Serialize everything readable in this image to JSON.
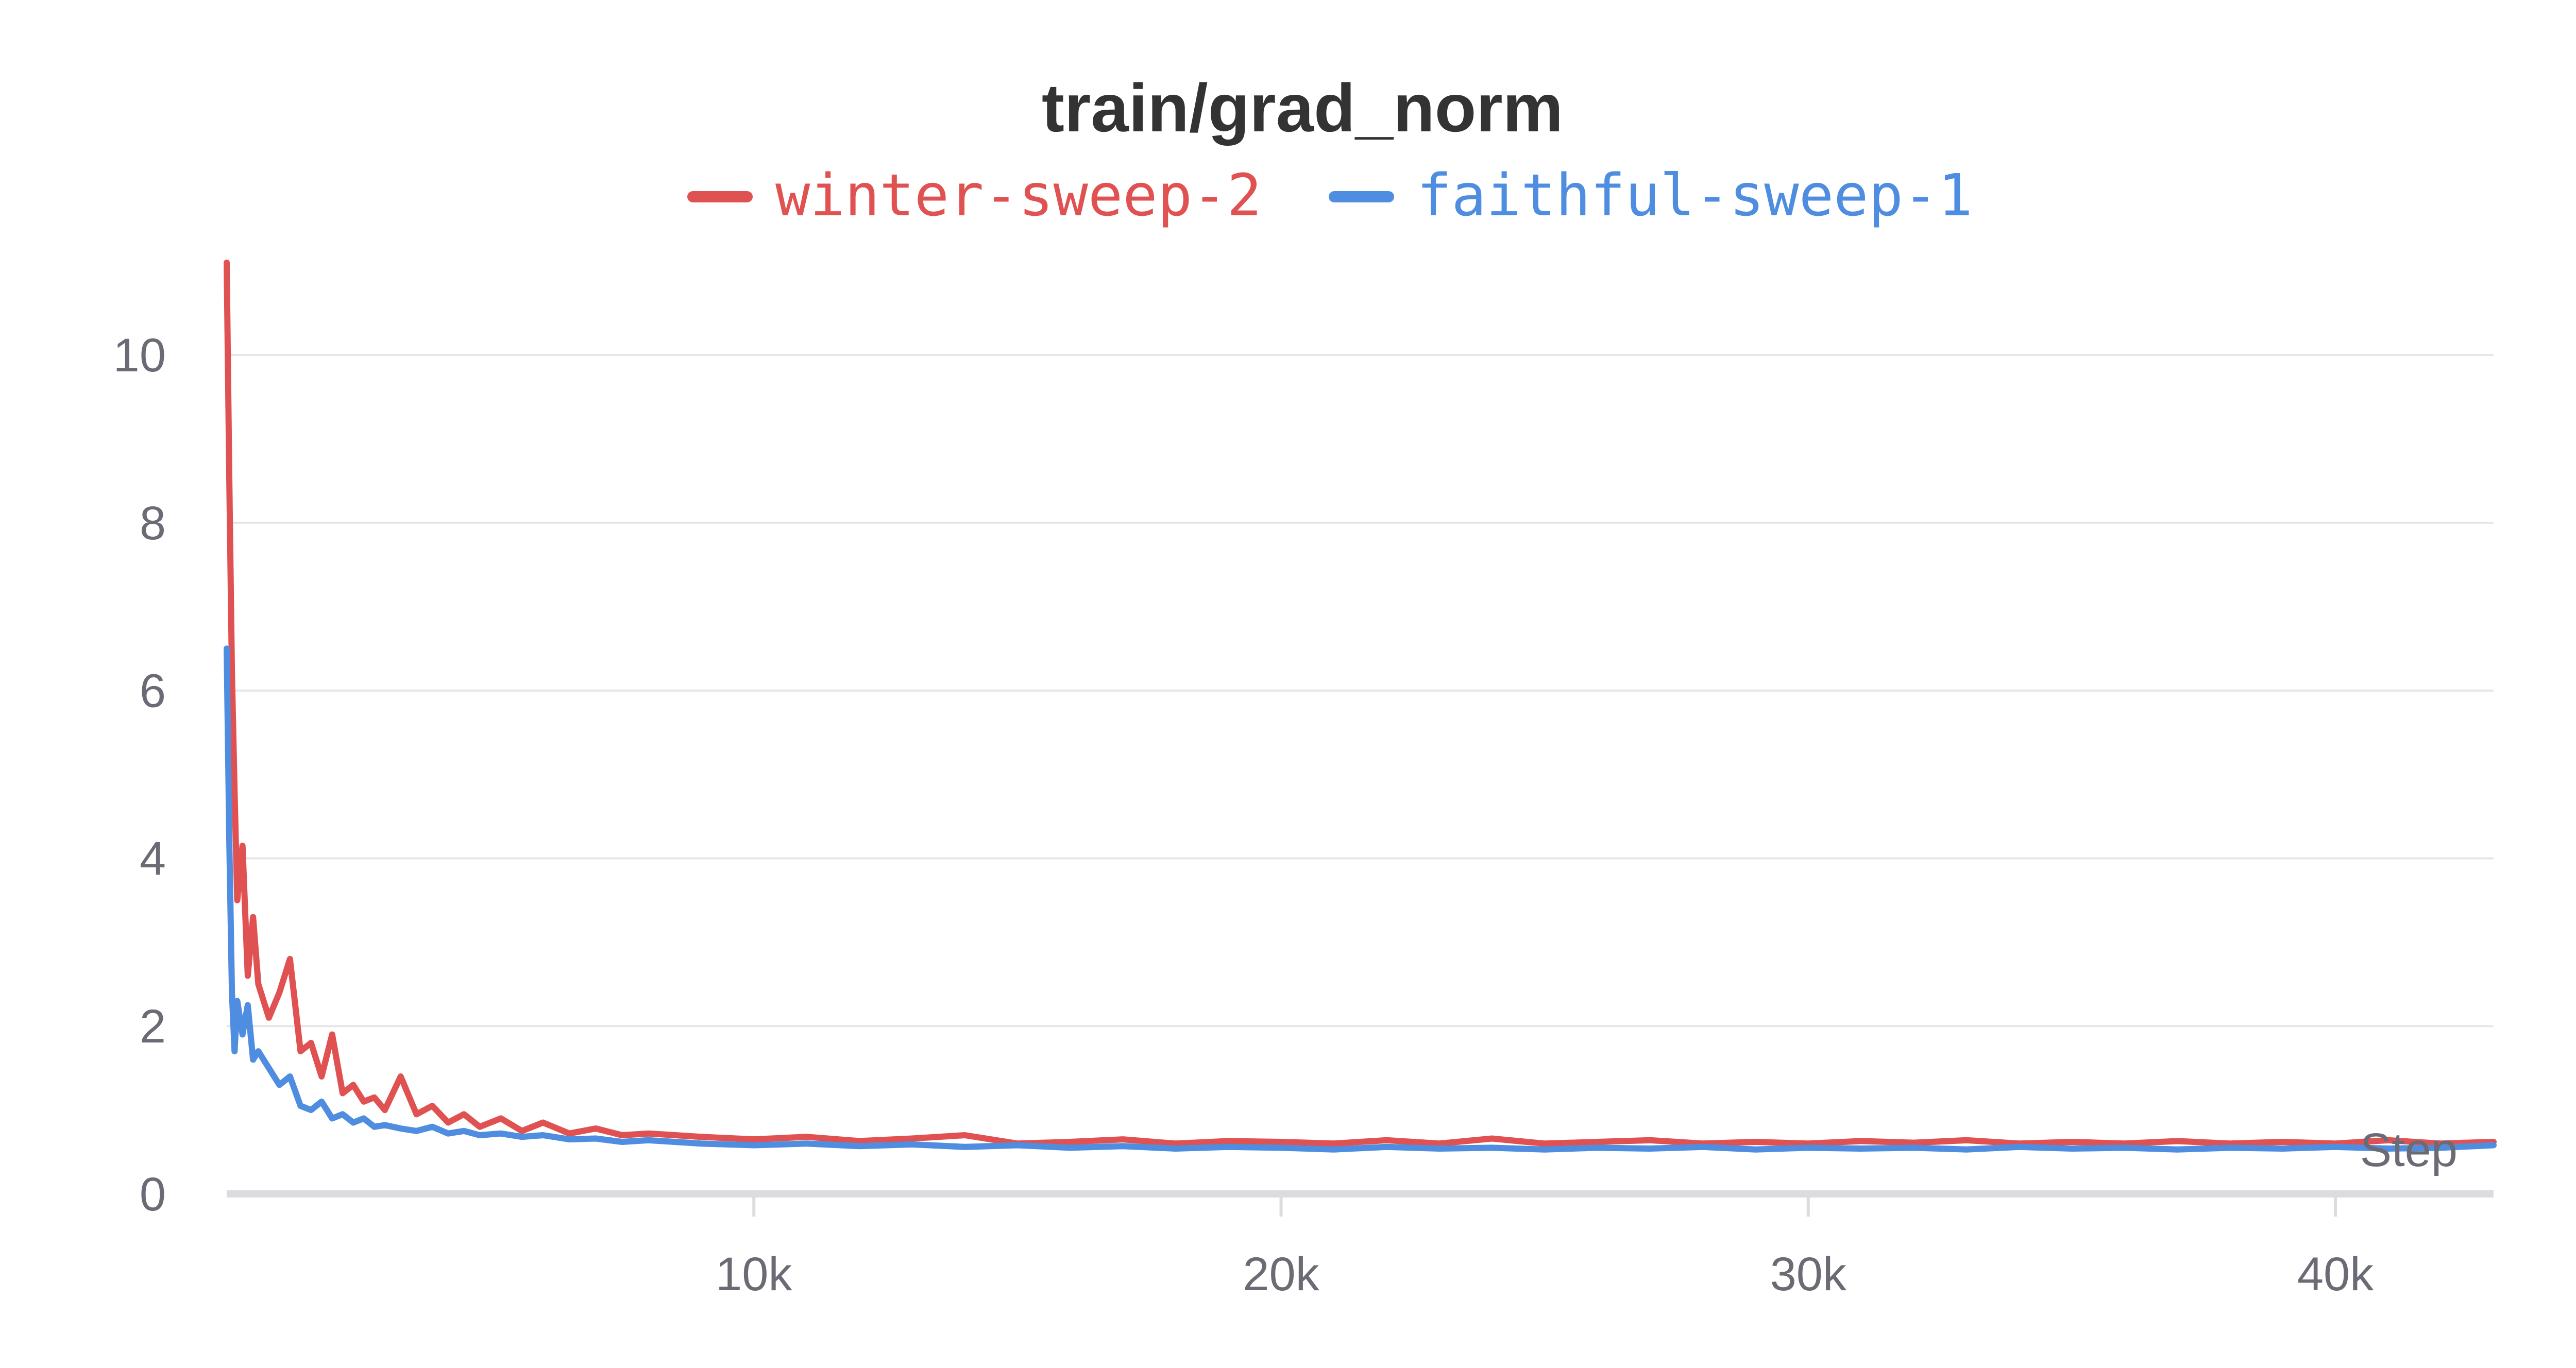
{
  "chart_data": {
    "type": "line",
    "title": "train/grad_norm",
    "xlabel": "Step",
    "ylabel": "",
    "xlim": [
      0,
      43000
    ],
    "ylim": [
      0,
      11.1
    ],
    "grid": true,
    "legend_position": "top-center",
    "x_ticks": [
      {
        "value": 10000,
        "label": "10k"
      },
      {
        "value": 20000,
        "label": "20k"
      },
      {
        "value": 30000,
        "label": "30k"
      },
      {
        "value": 40000,
        "label": "40k"
      }
    ],
    "y_ticks": [
      {
        "value": 0,
        "label": "0"
      },
      {
        "value": 2,
        "label": "2"
      },
      {
        "value": 4,
        "label": "4"
      },
      {
        "value": 6,
        "label": "6"
      },
      {
        "value": 8,
        "label": "8"
      },
      {
        "value": 10,
        "label": "10"
      }
    ],
    "series": [
      {
        "name": "winter-sweep-2",
        "color": "#e05252",
        "x": [
          0,
          50,
          100,
          150,
          200,
          300,
          400,
          500,
          600,
          800,
          1000,
          1200,
          1400,
          1600,
          1800,
          2000,
          2200,
          2400,
          2600,
          2800,
          3000,
          3300,
          3600,
          3900,
          4200,
          4500,
          4800,
          5200,
          5600,
          6000,
          6500,
          7000,
          7500,
          8000,
          9000,
          10000,
          11000,
          12000,
          13000,
          14000,
          15000,
          16000,
          17000,
          18000,
          19000,
          20000,
          21000,
          22000,
          23000,
          24000,
          25000,
          26000,
          27000,
          28000,
          29000,
          30000,
          31000,
          32000,
          33000,
          34000,
          35000,
          36000,
          37000,
          38000,
          39000,
          40000,
          41000,
          42000,
          43000
        ],
        "values": [
          11.1,
          8.5,
          6.2,
          4.8,
          3.5,
          4.15,
          2.6,
          3.3,
          2.5,
          2.1,
          2.4,
          2.8,
          1.7,
          1.8,
          1.4,
          1.9,
          1.2,
          1.3,
          1.1,
          1.15,
          1.0,
          1.4,
          0.95,
          1.05,
          0.85,
          0.95,
          0.8,
          0.9,
          0.75,
          0.85,
          0.72,
          0.78,
          0.7,
          0.72,
          0.68,
          0.65,
          0.68,
          0.63,
          0.66,
          0.7,
          0.6,
          0.62,
          0.65,
          0.6,
          0.63,
          0.62,
          0.6,
          0.64,
          0.6,
          0.66,
          0.6,
          0.62,
          0.64,
          0.6,
          0.62,
          0.6,
          0.63,
          0.61,
          0.64,
          0.6,
          0.62,
          0.6,
          0.63,
          0.6,
          0.62,
          0.6,
          0.64,
          0.6,
          0.62
        ]
      },
      {
        "name": "faithful-sweep-1",
        "color": "#4e8ddf",
        "x": [
          0,
          50,
          100,
          150,
          200,
          300,
          400,
          500,
          600,
          800,
          1000,
          1200,
          1400,
          1600,
          1800,
          2000,
          2200,
          2400,
          2600,
          2800,
          3000,
          3300,
          3600,
          3900,
          4200,
          4500,
          4800,
          5200,
          5600,
          6000,
          6500,
          7000,
          7500,
          8000,
          9000,
          10000,
          11000,
          12000,
          13000,
          14000,
          15000,
          16000,
          17000,
          18000,
          19000,
          20000,
          21000,
          22000,
          23000,
          24000,
          25000,
          26000,
          27000,
          28000,
          29000,
          30000,
          31000,
          32000,
          33000,
          34000,
          35000,
          36000,
          37000,
          38000,
          39000,
          40000,
          41000,
          42000,
          43000
        ],
        "values": [
          6.5,
          4.2,
          2.4,
          1.7,
          2.3,
          1.9,
          2.25,
          1.6,
          1.7,
          1.5,
          1.3,
          1.4,
          1.05,
          1.0,
          1.1,
          0.9,
          0.95,
          0.85,
          0.9,
          0.8,
          0.82,
          0.78,
          0.75,
          0.8,
          0.72,
          0.75,
          0.7,
          0.72,
          0.68,
          0.7,
          0.65,
          0.66,
          0.62,
          0.64,
          0.6,
          0.58,
          0.6,
          0.57,
          0.59,
          0.56,
          0.58,
          0.55,
          0.57,
          0.54,
          0.56,
          0.55,
          0.53,
          0.56,
          0.54,
          0.55,
          0.53,
          0.55,
          0.54,
          0.56,
          0.53,
          0.55,
          0.54,
          0.55,
          0.53,
          0.56,
          0.54,
          0.55,
          0.53,
          0.55,
          0.54,
          0.56,
          0.54,
          0.55,
          0.58
        ]
      }
    ]
  },
  "colors": {
    "grid": "#e6e6e9",
    "axis": "#dcdce0",
    "title": "#333333",
    "tick": "#6b6b76"
  }
}
